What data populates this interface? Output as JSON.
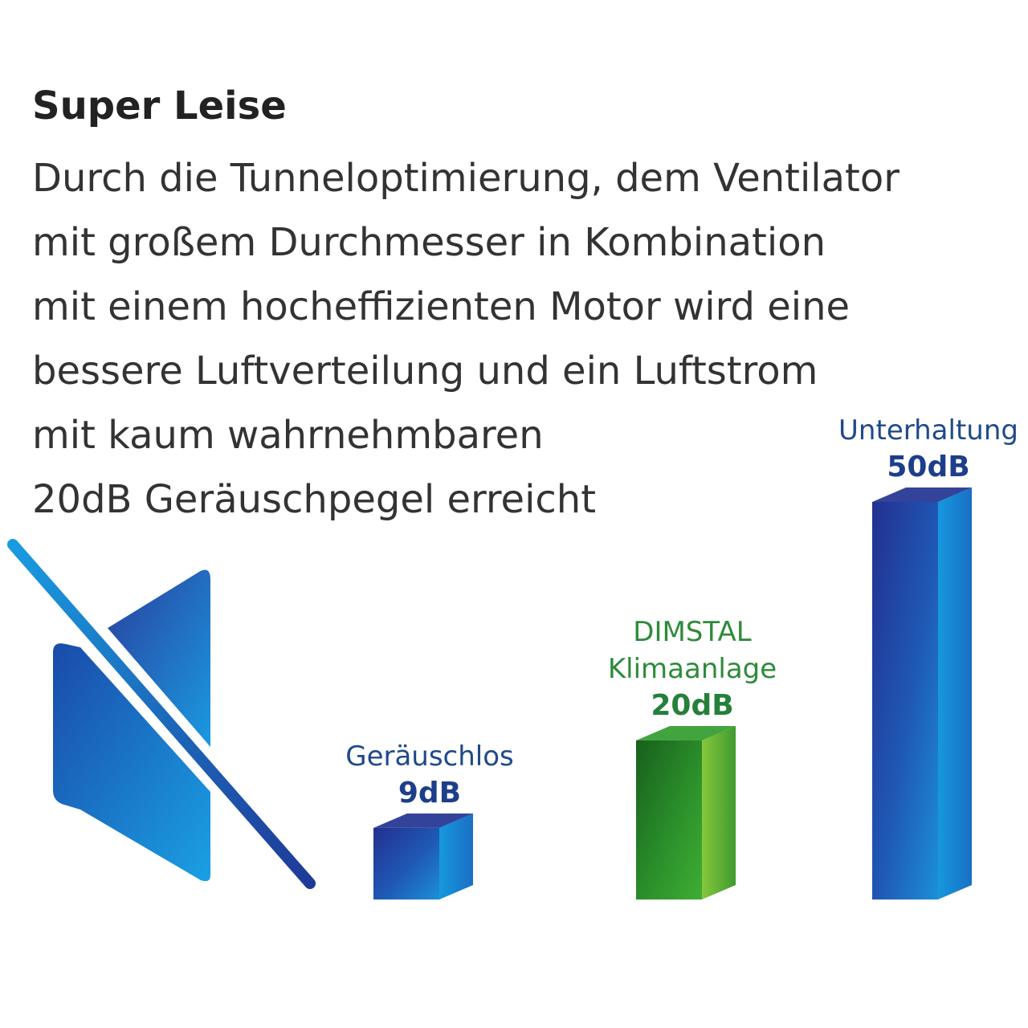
{
  "heading": "Super Leise",
  "body_lines": [
    "Durch die Tunneloptimierung, dem Ventilator",
    "mit großem Durchmesser in Kombination",
    "mit einem hocheffizienten Motor wird eine",
    "bessere Luftverteilung und ein Luftstrom",
    "mit kaum wahrnehmbaren",
    "20dB Geräuschpegel erreicht"
  ],
  "icon": "mute-speaker-icon",
  "colors": {
    "blue_dark": "#1e2f8f",
    "blue_mid": "#1f4fb0",
    "blue_light": "#1a8fd8",
    "green_dark": "#1b6e1e",
    "green_mid": "#2e9a2a",
    "green_light": "#7fc63a",
    "blue_label": "#1f4a8a",
    "green_label": "#2e8b3a"
  },
  "chart_data": {
    "type": "bar",
    "categories": [
      "Geräuschlos",
      "DIMSTAL Klimaanlage",
      "Unterhaltung"
    ],
    "values": [
      9,
      20,
      50
    ],
    "value_labels": [
      "9dB",
      "20dB",
      "50dB"
    ],
    "unit": "dB",
    "highlight_category": "DIMSTAL Klimaanlage",
    "bar_colors": [
      "blue",
      "green",
      "blue"
    ],
    "ylim": [
      0,
      50
    ],
    "grid": false,
    "legend": "none"
  }
}
